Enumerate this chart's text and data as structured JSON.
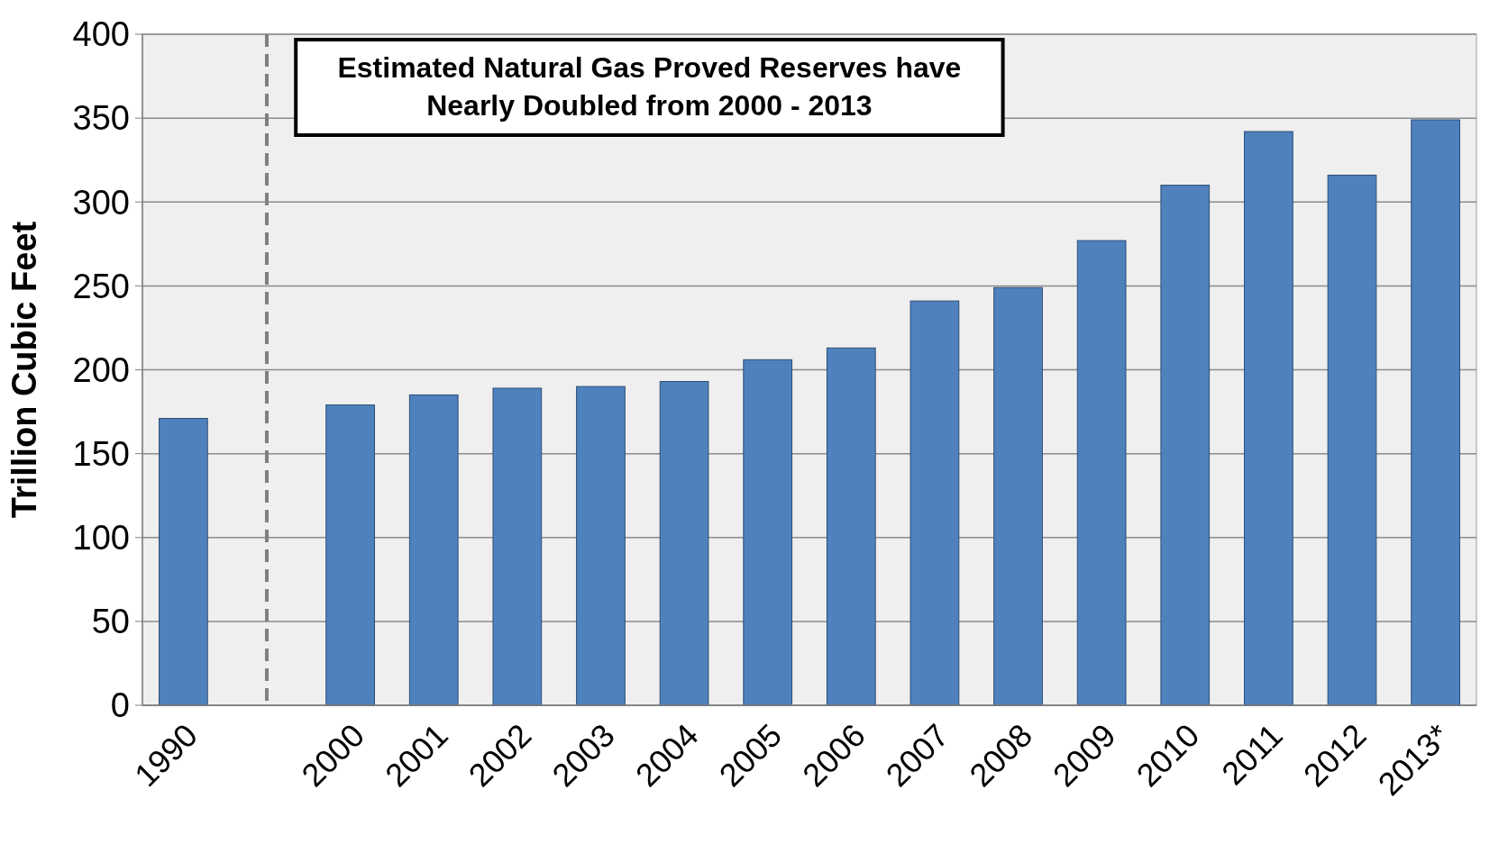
{
  "chart_data": {
    "type": "bar",
    "ylabel": "Trillion Cubic Feet",
    "categories": [
      "1990",
      null,
      "2000",
      "2001",
      "2002",
      "2003",
      "2004",
      "2005",
      "2006",
      "2007",
      "2008",
      "2009",
      "2010",
      "2011",
      "2012",
      "2013*"
    ],
    "values": [
      171,
      null,
      179,
      185,
      189,
      190,
      193,
      206,
      213,
      241,
      249,
      277,
      310,
      342,
      316,
      349
    ],
    "color": "#4f81bd",
    "ylim": [
      0,
      400
    ],
    "yticks": [
      0,
      50,
      100,
      150,
      200,
      250,
      300,
      350,
      400
    ],
    "grid": "y",
    "annotations": [
      "Estimated Natural Gas Proved Reserves have Nearly Doubled from 2000 - 2013"
    ]
  }
}
